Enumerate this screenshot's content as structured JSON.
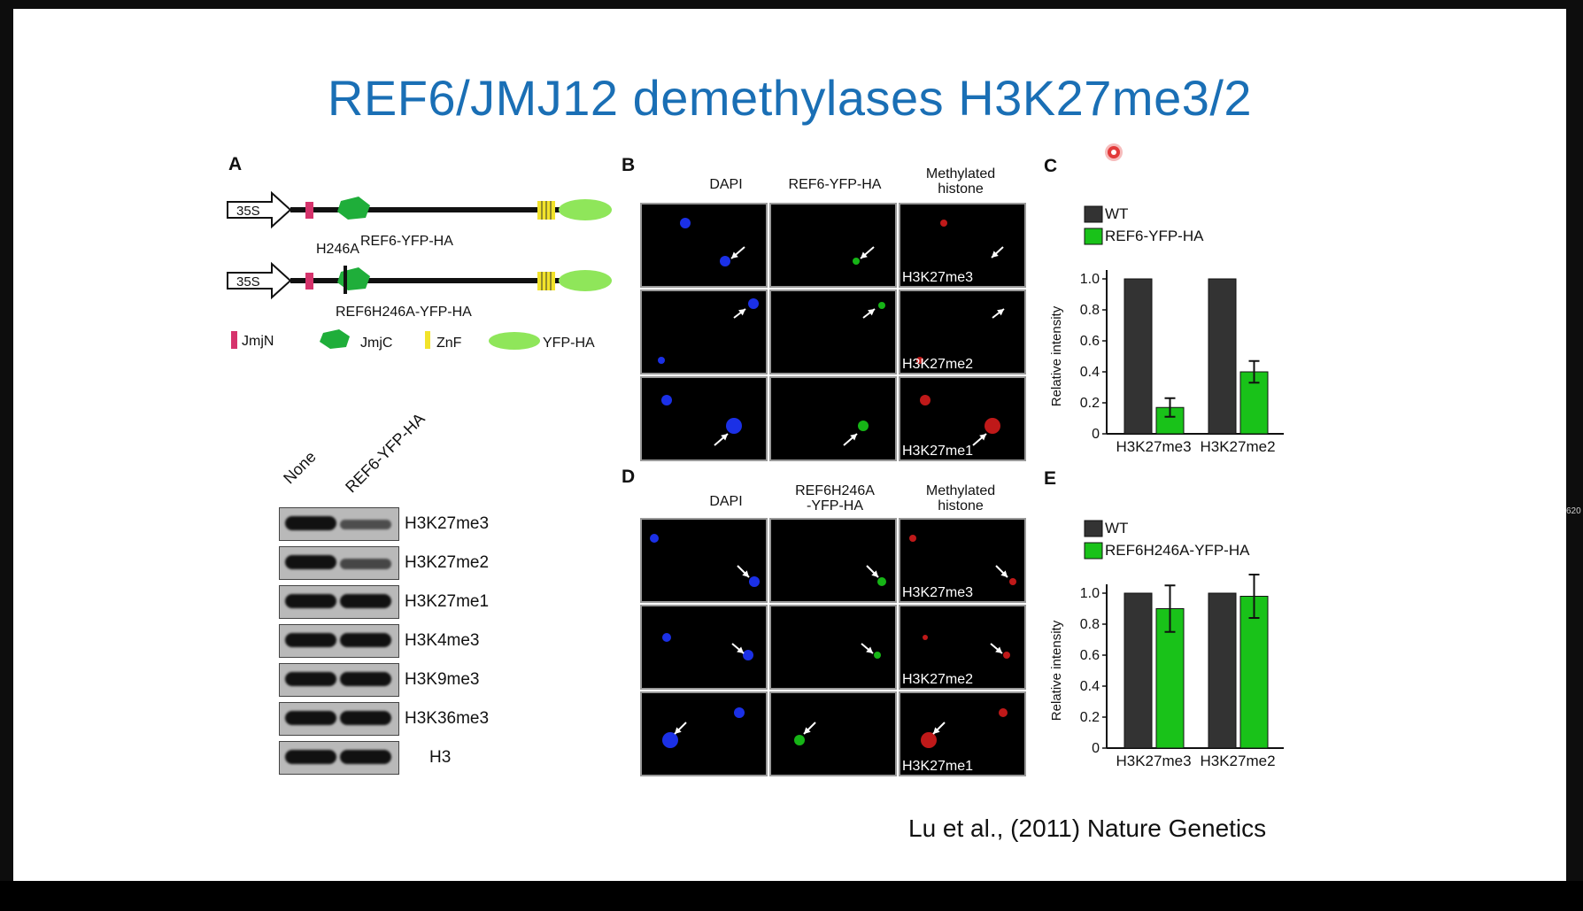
{
  "slide": {
    "title": "REF6/JMJ12 demethylases H3K27me3/2",
    "citation": "Lu et al., (2011) Nature Genetics",
    "edge_label": "620",
    "title_color": "#1a6fb5"
  },
  "panel_a": {
    "letter": "A",
    "promoter_label": "35S",
    "construct1_label": "REF6-YFP-HA",
    "mutation_label": "H246A",
    "construct2_label": "REF6H246A-YFP-HA",
    "legend": {
      "jmjn": "JmjN",
      "jmjc": "JmjC",
      "znf": "ZnF",
      "yfp": "YFP-HA"
    },
    "colors": {
      "jmjn": "#d6336c",
      "jmjc": "#1fae3a",
      "znf": "#f2e32a",
      "yfp": "#8fe65a"
    },
    "blot": {
      "lanes": [
        "None",
        "REF6-YFP-HA"
      ],
      "rows": [
        {
          "label": "H3K27me3",
          "lane2_level": 0.45
        },
        {
          "label": "H3K27me2",
          "lane2_level": 0.5
        },
        {
          "label": "H3K27me1",
          "lane2_level": 1.0
        },
        {
          "label": "H3K4me3",
          "lane2_level": 1.0
        },
        {
          "label": "H3K9me3",
          "lane2_level": 1.0
        },
        {
          "label": "H3K36me3",
          "lane2_level": 1.0
        },
        {
          "label": "H3",
          "lane2_level": 1.0
        }
      ]
    }
  },
  "panel_b": {
    "letter": "B",
    "col_dapi": "DAPI",
    "col_fusion": "REF6-YFP-HA",
    "col_methyl_1": "Methylated",
    "col_methyl_2": "histone",
    "rows": [
      "H3K27me3",
      "H3K27me2",
      "H3K27me1"
    ]
  },
  "panel_d": {
    "letter": "D",
    "col_dapi": "DAPI",
    "col_fusion_1": "REF6H246A",
    "col_fusion_2": "-YFP-HA",
    "col_methyl_1": "Methylated",
    "col_methyl_2": "histone",
    "rows": [
      "H3K27me3",
      "H3K27me2",
      "H3K27me1"
    ]
  },
  "panel_c": {
    "letter": "C"
  },
  "panel_e": {
    "letter": "E"
  },
  "chart_data": [
    {
      "type": "bar",
      "panel": "C",
      "categories": [
        "H3K27me3",
        "H3K27me2"
      ],
      "ylabel": "Relative intensity",
      "ylim": [
        0,
        1.0
      ],
      "yticks": [
        "0",
        "0.2",
        "0.4",
        "0.6",
        "0.8",
        "1.0"
      ],
      "series": [
        {
          "name": "WT",
          "color": "#333333",
          "values": [
            1.0,
            1.0
          ],
          "errors": [
            0,
            0
          ]
        },
        {
          "name": "REF6-YFP-HA",
          "color": "#19c219",
          "values": [
            0.17,
            0.4
          ],
          "errors": [
            0.06,
            0.07
          ]
        }
      ]
    },
    {
      "type": "bar",
      "panel": "E",
      "categories": [
        "H3K27me3",
        "H3K27me2"
      ],
      "ylabel": "Relative intensity",
      "ylim": [
        0,
        1.0
      ],
      "yticks": [
        "0",
        "0.2",
        "0.4",
        "0.6",
        "0.8",
        "1.0"
      ],
      "series": [
        {
          "name": "WT",
          "color": "#333333",
          "values": [
            1.0,
            1.0
          ],
          "errors": [
            0,
            0
          ]
        },
        {
          "name": "REF6H246A-YFP-HA",
          "color": "#19c219",
          "values": [
            0.9,
            0.98
          ],
          "errors": [
            0.15,
            0.14
          ]
        }
      ]
    }
  ]
}
